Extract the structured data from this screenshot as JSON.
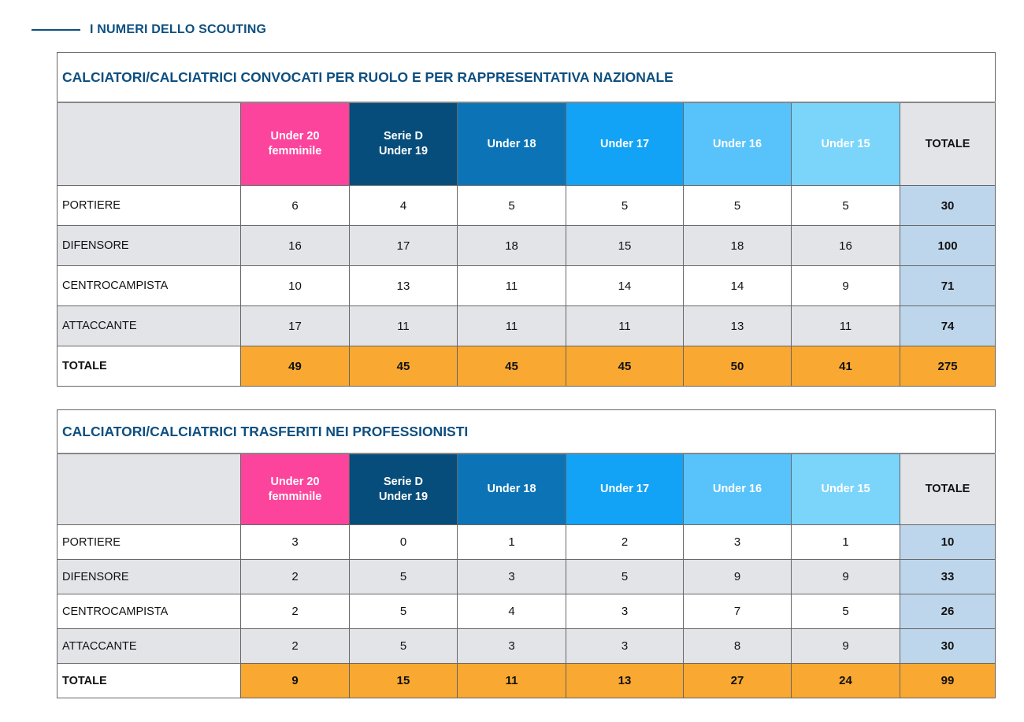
{
  "section_title": "I NUMERI DELLO SCOUTING",
  "colors": {
    "headers": [
      "#fd449d",
      "#064d7b",
      "#0c74b6",
      "#12a3f6",
      "#58c2fa",
      "#7bd5fb"
    ],
    "row_total": "#bed6eb",
    "grand_total": "#f9a832",
    "title": "#0d4f80"
  },
  "tables": [
    {
      "title": "CALCIATORI/CALCIATRICI CONVOCATI PER RUOLO E PER RAPPRESENTATIVA NAZIONALE",
      "columns": [
        [
          "Under 20",
          "femminile"
        ],
        [
          "Serie D",
          "Under 19"
        ],
        [
          "Under 18"
        ],
        [
          "Under 17"
        ],
        [
          "Under 16"
        ],
        [
          "Under 15"
        ]
      ],
      "total_header": "TOTALE",
      "rows": [
        {
          "label": "PORTIERE",
          "values": [
            "6",
            "4",
            "5",
            "5",
            "5",
            "5"
          ],
          "total": "30"
        },
        {
          "label": "DIFENSORE",
          "values": [
            "16",
            "17",
            "18",
            "15",
            "18",
            "16"
          ],
          "total": "100"
        },
        {
          "label": "CENTROCAMPISTA",
          "values": [
            "10",
            "13",
            "11",
            "14",
            "14",
            "9"
          ],
          "total": "71"
        },
        {
          "label": "ATTACCANTE",
          "values": [
            "17",
            "11",
            "11",
            "11",
            "13",
            "11"
          ],
          "total": "74"
        }
      ],
      "totals": {
        "label": "TOTALE",
        "values": [
          "49",
          "45",
          "45",
          "45",
          "50",
          "41"
        ],
        "total": "275"
      }
    },
    {
      "title": "CALCIATORI/CALCIATRICI TRASFERITI NEI PROFESSIONISTI",
      "columns": [
        [
          "Under 20",
          "femminile"
        ],
        [
          "Serie D",
          "Under 19"
        ],
        [
          "Under 18"
        ],
        [
          "Under 17"
        ],
        [
          "Under 16"
        ],
        [
          "Under 15"
        ]
      ],
      "total_header": "TOTALE",
      "rows": [
        {
          "label": "PORTIERE",
          "values": [
            "3",
            "0",
            "1",
            "2",
            "3",
            "1"
          ],
          "total": "10"
        },
        {
          "label": "DIFENSORE",
          "values": [
            "2",
            "5",
            "3",
            "5",
            "9",
            "9"
          ],
          "total": "33"
        },
        {
          "label": "CENTROCAMPISTA",
          "values": [
            "2",
            "5",
            "4",
            "3",
            "7",
            "5"
          ],
          "total": "26"
        },
        {
          "label": "ATTACCANTE",
          "values": [
            "2",
            "5",
            "3",
            "3",
            "8",
            "9"
          ],
          "total": "30"
        }
      ],
      "totals": {
        "label": "TOTALE",
        "values": [
          "9",
          "15",
          "11",
          "13",
          "27",
          "24"
        ],
        "total": "99"
      }
    }
  ]
}
